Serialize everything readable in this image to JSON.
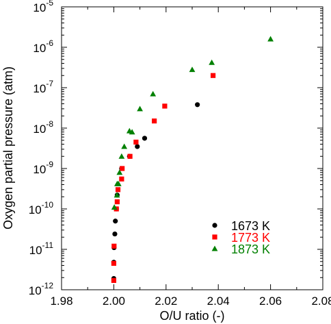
{
  "chart_data": {
    "type": "scatter",
    "title": "",
    "xlabel": "O/U ratio (-)",
    "ylabel": "Oxygen partial pressure (atm)",
    "x_scale": "linear",
    "y_scale": "log",
    "xlim": [
      1.98,
      2.08
    ],
    "ylim": [
      1e-12,
      1e-05
    ],
    "x_ticks": [
      1.98,
      2.0,
      2.02,
      2.04,
      2.06,
      2.08
    ],
    "x_tick_labels": [
      "1.98",
      "2.00",
      "2.02",
      "2.04",
      "2.06",
      "2.08"
    ],
    "y_ticks": [
      {
        "value": 1e-12,
        "mantissa": "10",
        "exp": "-12"
      },
      {
        "value": 1e-11,
        "mantissa": "10",
        "exp": "-11"
      },
      {
        "value": 1e-10,
        "mantissa": "10",
        "exp": "-10"
      },
      {
        "value": 1e-09,
        "mantissa": "10",
        "exp": "-9"
      },
      {
        "value": 1e-08,
        "mantissa": "10",
        "exp": "-8"
      },
      {
        "value": 1e-07,
        "mantissa": "10",
        "exp": "-7"
      },
      {
        "value": 1e-06,
        "mantissa": "10",
        "exp": "-6"
      },
      {
        "value": 1e-05,
        "mantissa": "10",
        "exp": "-5"
      }
    ],
    "grid": false,
    "legend_position": "bottom-right",
    "series": [
      {
        "name": "1673 K",
        "color": "#000000",
        "marker": "circle",
        "points": [
          [
            2.0,
            1.9e-12
          ],
          [
            2.0,
            4.8e-12
          ],
          [
            2.0001,
            1.1e-11
          ],
          [
            2.0004,
            2.4e-11
          ],
          [
            2.0006,
            5e-11
          ],
          [
            2.001,
            1e-10
          ],
          [
            2.0013,
            2.2e-10
          ],
          [
            2.003,
            1e-09
          ],
          [
            2.006,
            2e-09
          ],
          [
            2.009,
            3.5e-09
          ],
          [
            2.0118,
            5.6e-09
          ],
          [
            2.032,
            3.8e-08
          ]
        ]
      },
      {
        "name": "1773 K",
        "color": "#ff0000",
        "marker": "square",
        "points": [
          [
            2.0,
            1.7e-12
          ],
          [
            2.0,
            4.5e-12
          ],
          [
            2.0001,
            1.2e-11
          ],
          [
            2.001,
            1e-10
          ],
          [
            2.0013,
            1.5e-10
          ],
          [
            2.0016,
            3e-10
          ],
          [
            2.003,
            5.5e-10
          ],
          [
            2.0032,
            1e-09
          ],
          [
            2.0062,
            2e-09
          ],
          [
            2.0085,
            4.5e-09
          ],
          [
            2.0155,
            1.5e-08
          ],
          [
            2.0195,
            3.5e-08
          ],
          [
            2.038,
            2e-07
          ]
        ]
      },
      {
        "name": "1873 K",
        "color": "#008000",
        "marker": "triangle",
        "points": [
          [
            2.0002,
            1.1e-10
          ],
          [
            2.0012,
            2.2e-10
          ],
          [
            2.0013,
            4.2e-10
          ],
          [
            2.0018,
            4.2e-10
          ],
          [
            2.0022,
            8e-10
          ],
          [
            2.003,
            2e-09
          ],
          [
            2.004,
            3.5e-09
          ],
          [
            2.006,
            8.5e-09
          ],
          [
            2.007,
            8e-09
          ],
          [
            2.01,
            3e-08
          ],
          [
            2.015,
            7e-08
          ],
          [
            2.03,
            2.8e-07
          ],
          [
            2.0375,
            4.2e-07
          ],
          [
            2.06,
            1.6e-06
          ]
        ]
      }
    ]
  }
}
